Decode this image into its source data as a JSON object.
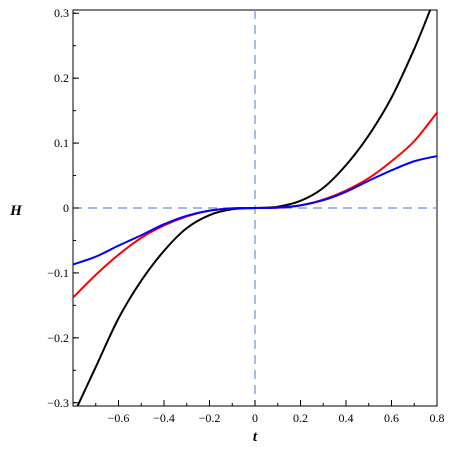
{
  "chart_data": {
    "type": "line",
    "title": "",
    "xlabel": "t",
    "ylabel": "H",
    "xlim": [
      -0.8,
      0.8
    ],
    "ylim": [
      -0.305,
      0.305
    ],
    "x_ticks": [
      -0.6,
      -0.4,
      -0.2,
      0,
      0.2,
      0.4,
      0.6,
      0.8
    ],
    "x_tick_labels": [
      "−0.6",
      "−0.4",
      "−0.2",
      "0",
      "0.2",
      "0.4",
      "0.6",
      "0.8"
    ],
    "y_ticks": [
      -0.3,
      -0.2,
      -0.1,
      0,
      0.1,
      0.2,
      0.3
    ],
    "y_tick_labels": [
      "−0.3",
      "−0.2",
      "−0.1",
      "0",
      "0.1",
      "0.2",
      "0.3"
    ],
    "grid": false,
    "legend": "none",
    "reference_lines": {
      "horizontal_at": 0,
      "vertical_at": 0,
      "style": "dashed",
      "color": "#6f8fe0"
    },
    "series": [
      {
        "color": "#000000",
        "x": [
          -0.78,
          -0.7,
          -0.6,
          -0.5,
          -0.4,
          -0.3,
          -0.2,
          -0.1,
          0,
          0.1,
          0.2,
          0.3,
          0.4,
          0.5,
          0.6,
          0.7,
          0.77
        ],
        "y": [
          -0.305,
          -0.245,
          -0.17,
          -0.112,
          -0.066,
          -0.031,
          -0.011,
          -0.002,
          0,
          0.002,
          0.011,
          0.031,
          0.066,
          0.112,
          0.17,
          0.245,
          0.305
        ]
      },
      {
        "color": "#ff0000",
        "x": [
          -0.8,
          -0.7,
          -0.6,
          -0.5,
          -0.4,
          -0.3,
          -0.2,
          -0.1,
          0,
          0.1,
          0.2,
          0.3,
          0.4,
          0.5,
          0.6,
          0.7,
          0.8
        ],
        "y": [
          -0.138,
          -0.103,
          -0.072,
          -0.046,
          -0.027,
          -0.013,
          -0.004,
          -0.0005,
          0,
          0.0005,
          0.004,
          0.013,
          0.027,
          0.046,
          0.072,
          0.103,
          0.147
        ]
      },
      {
        "color": "#0000ff",
        "x": [
          -0.8,
          -0.7,
          -0.6,
          -0.5,
          -0.4,
          -0.3,
          -0.2,
          -0.1,
          0,
          0.1,
          0.2,
          0.3,
          0.4,
          0.5,
          0.6,
          0.7,
          0.8
        ],
        "y": [
          -0.087,
          -0.075,
          -0.058,
          -0.042,
          -0.025,
          -0.012,
          -0.004,
          -0.0005,
          0,
          0.0005,
          0.004,
          0.012,
          0.025,
          0.042,
          0.058,
          0.072,
          0.08
        ]
      }
    ]
  }
}
